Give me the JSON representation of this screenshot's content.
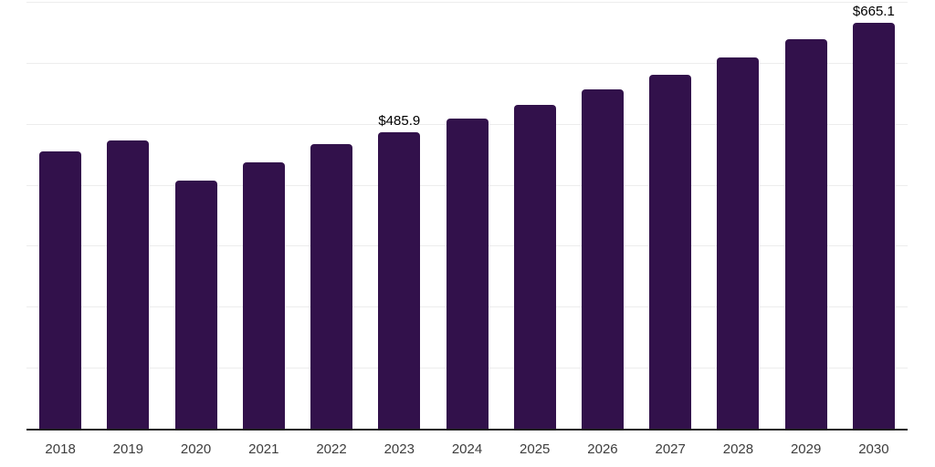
{
  "chart_data": {
    "type": "bar",
    "title": "",
    "xlabel": "",
    "ylabel": "",
    "categories": [
      "2018",
      "2019",
      "2020",
      "2021",
      "2022",
      "2023",
      "2024",
      "2025",
      "2026",
      "2027",
      "2028",
      "2029",
      "2030"
    ],
    "values": [
      455,
      472,
      407,
      437,
      467,
      485.9,
      509,
      531,
      556,
      580,
      609,
      638,
      665.1
    ],
    "labeled_points": [
      {
        "category": "2023",
        "label": "$485.9"
      },
      {
        "category": "2030",
        "label": "$665.1"
      }
    ],
    "value_prefix": "$",
    "ylim": [
      0,
      700
    ],
    "gridline_step": 100,
    "grid": true,
    "legend": false,
    "colors": {
      "bar": "#32114B",
      "gridline": "#EDEDED",
      "axis": "#1F1F1F",
      "tick_label": "#3D3D3D",
      "value_label": "#000000",
      "background": "#FFFFFF"
    }
  }
}
